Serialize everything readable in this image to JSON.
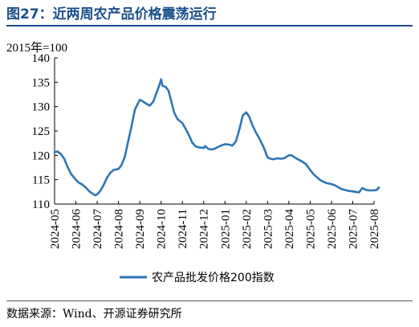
{
  "header": {
    "title": "图27：近两周农产品价格震荡运行"
  },
  "footer": {
    "source": "数据来源：Wind、开源证券研究所"
  },
  "colors": {
    "title": "#1a4f8b",
    "series": "#2e75b6"
  },
  "chart_data": {
    "type": "line",
    "title": "",
    "unit_label": "2015年=100",
    "xlabel": "",
    "ylabel": "",
    "ylim": [
      110,
      140
    ],
    "yticks": [
      110,
      115,
      120,
      125,
      130,
      135,
      140
    ],
    "xticks": [
      "2024-05",
      "2024-06",
      "2024-07",
      "2024-08",
      "2024-09",
      "2024-10",
      "2024-11",
      "2024-12",
      "2025-01",
      "2025-02",
      "2025-03",
      "2025-04",
      "2025-05",
      "2025-06",
      "2025-07",
      "2025-08"
    ],
    "grid": false,
    "legend_position": "bottom",
    "series": [
      {
        "name": "农产品批发价格200指数",
        "color": "#2e75b6",
        "points": [
          [
            "2024-05-01",
            120.6
          ],
          [
            "2024-05-05",
            120.8
          ],
          [
            "2024-05-10",
            120.3
          ],
          [
            "2024-05-15",
            119.3
          ],
          [
            "2024-05-20",
            117.6
          ],
          [
            "2024-05-25",
            116.2
          ],
          [
            "2024-06-01",
            115.0
          ],
          [
            "2024-06-05",
            114.4
          ],
          [
            "2024-06-10",
            114.0
          ],
          [
            "2024-06-15",
            113.4
          ],
          [
            "2024-06-20",
            112.6
          ],
          [
            "2024-06-25",
            112.1
          ],
          [
            "2024-06-28",
            111.8
          ],
          [
            "2024-07-01",
            112.0
          ],
          [
            "2024-07-05",
            112.6
          ],
          [
            "2024-07-10",
            113.8
          ],
          [
            "2024-07-15",
            115.3
          ],
          [
            "2024-07-20",
            116.4
          ],
          [
            "2024-07-25",
            117.0
          ],
          [
            "2024-08-01",
            117.2
          ],
          [
            "2024-08-05",
            117.9
          ],
          [
            "2024-08-10",
            119.6
          ],
          [
            "2024-08-15",
            122.8
          ],
          [
            "2024-08-20",
            126.0
          ],
          [
            "2024-08-25",
            129.4
          ],
          [
            "2024-09-01",
            131.4
          ],
          [
            "2024-09-05",
            131.1
          ],
          [
            "2024-09-10",
            130.6
          ],
          [
            "2024-09-15",
            130.2
          ],
          [
            "2024-09-20",
            131.0
          ],
          [
            "2024-09-25",
            133.0
          ],
          [
            "2024-09-29",
            134.6
          ],
          [
            "2024-10-01",
            135.6
          ],
          [
            "2024-10-03",
            134.3
          ],
          [
            "2024-10-08",
            134.0
          ],
          [
            "2024-10-12",
            133.2
          ],
          [
            "2024-10-16",
            131.0
          ],
          [
            "2024-10-20",
            128.8
          ],
          [
            "2024-10-25",
            127.4
          ],
          [
            "2024-11-01",
            126.6
          ],
          [
            "2024-11-05",
            125.6
          ],
          [
            "2024-11-10",
            124.2
          ],
          [
            "2024-11-15",
            122.6
          ],
          [
            "2024-11-20",
            121.8
          ],
          [
            "2024-11-25",
            121.6
          ],
          [
            "2024-12-01",
            121.5
          ],
          [
            "2024-12-03",
            121.9
          ],
          [
            "2024-12-08",
            121.3
          ],
          [
            "2024-12-13",
            121.2
          ],
          [
            "2024-12-18",
            121.4
          ],
          [
            "2024-12-23",
            121.8
          ],
          [
            "2024-12-28",
            122.1
          ],
          [
            "2025-01-02",
            122.3
          ],
          [
            "2025-01-07",
            122.2
          ],
          [
            "2025-01-12",
            122.0
          ],
          [
            "2025-01-17",
            122.9
          ],
          [
            "2025-01-22",
            125.3
          ],
          [
            "2025-01-27",
            128.2
          ],
          [
            "2025-02-01",
            128.8
          ],
          [
            "2025-02-05",
            127.9
          ],
          [
            "2025-02-09",
            126.2
          ],
          [
            "2025-02-14",
            124.6
          ],
          [
            "2025-02-19",
            123.2
          ],
          [
            "2025-02-24",
            121.6
          ],
          [
            "2025-03-01",
            119.6
          ],
          [
            "2025-03-05",
            119.3
          ],
          [
            "2025-03-10",
            119.2
          ],
          [
            "2025-03-15",
            119.4
          ],
          [
            "2025-03-20",
            119.3
          ],
          [
            "2025-03-25",
            119.4
          ],
          [
            "2025-04-01",
            120.0
          ],
          [
            "2025-04-05",
            120.0
          ],
          [
            "2025-04-10",
            119.5
          ],
          [
            "2025-04-15",
            119.1
          ],
          [
            "2025-04-20",
            118.7
          ],
          [
            "2025-04-25",
            118.2
          ],
          [
            "2025-05-01",
            117.0
          ],
          [
            "2025-05-05",
            116.3
          ],
          [
            "2025-05-10",
            115.6
          ],
          [
            "2025-05-15",
            115.0
          ],
          [
            "2025-05-20",
            114.6
          ],
          [
            "2025-05-25",
            114.3
          ],
          [
            "2025-06-01",
            114.1
          ],
          [
            "2025-06-05",
            113.9
          ],
          [
            "2025-06-10",
            113.5
          ],
          [
            "2025-06-15",
            113.1
          ],
          [
            "2025-06-20",
            112.9
          ],
          [
            "2025-06-25",
            112.7
          ],
          [
            "2025-07-01",
            112.6
          ],
          [
            "2025-07-05",
            112.5
          ],
          [
            "2025-07-10",
            112.4
          ],
          [
            "2025-07-15",
            113.3
          ],
          [
            "2025-07-20",
            112.9
          ],
          [
            "2025-07-25",
            112.8
          ],
          [
            "2025-07-31",
            112.8
          ],
          [
            "2025-08-05",
            112.9
          ],
          [
            "2025-08-08",
            113.4
          ]
        ]
      }
    ]
  }
}
